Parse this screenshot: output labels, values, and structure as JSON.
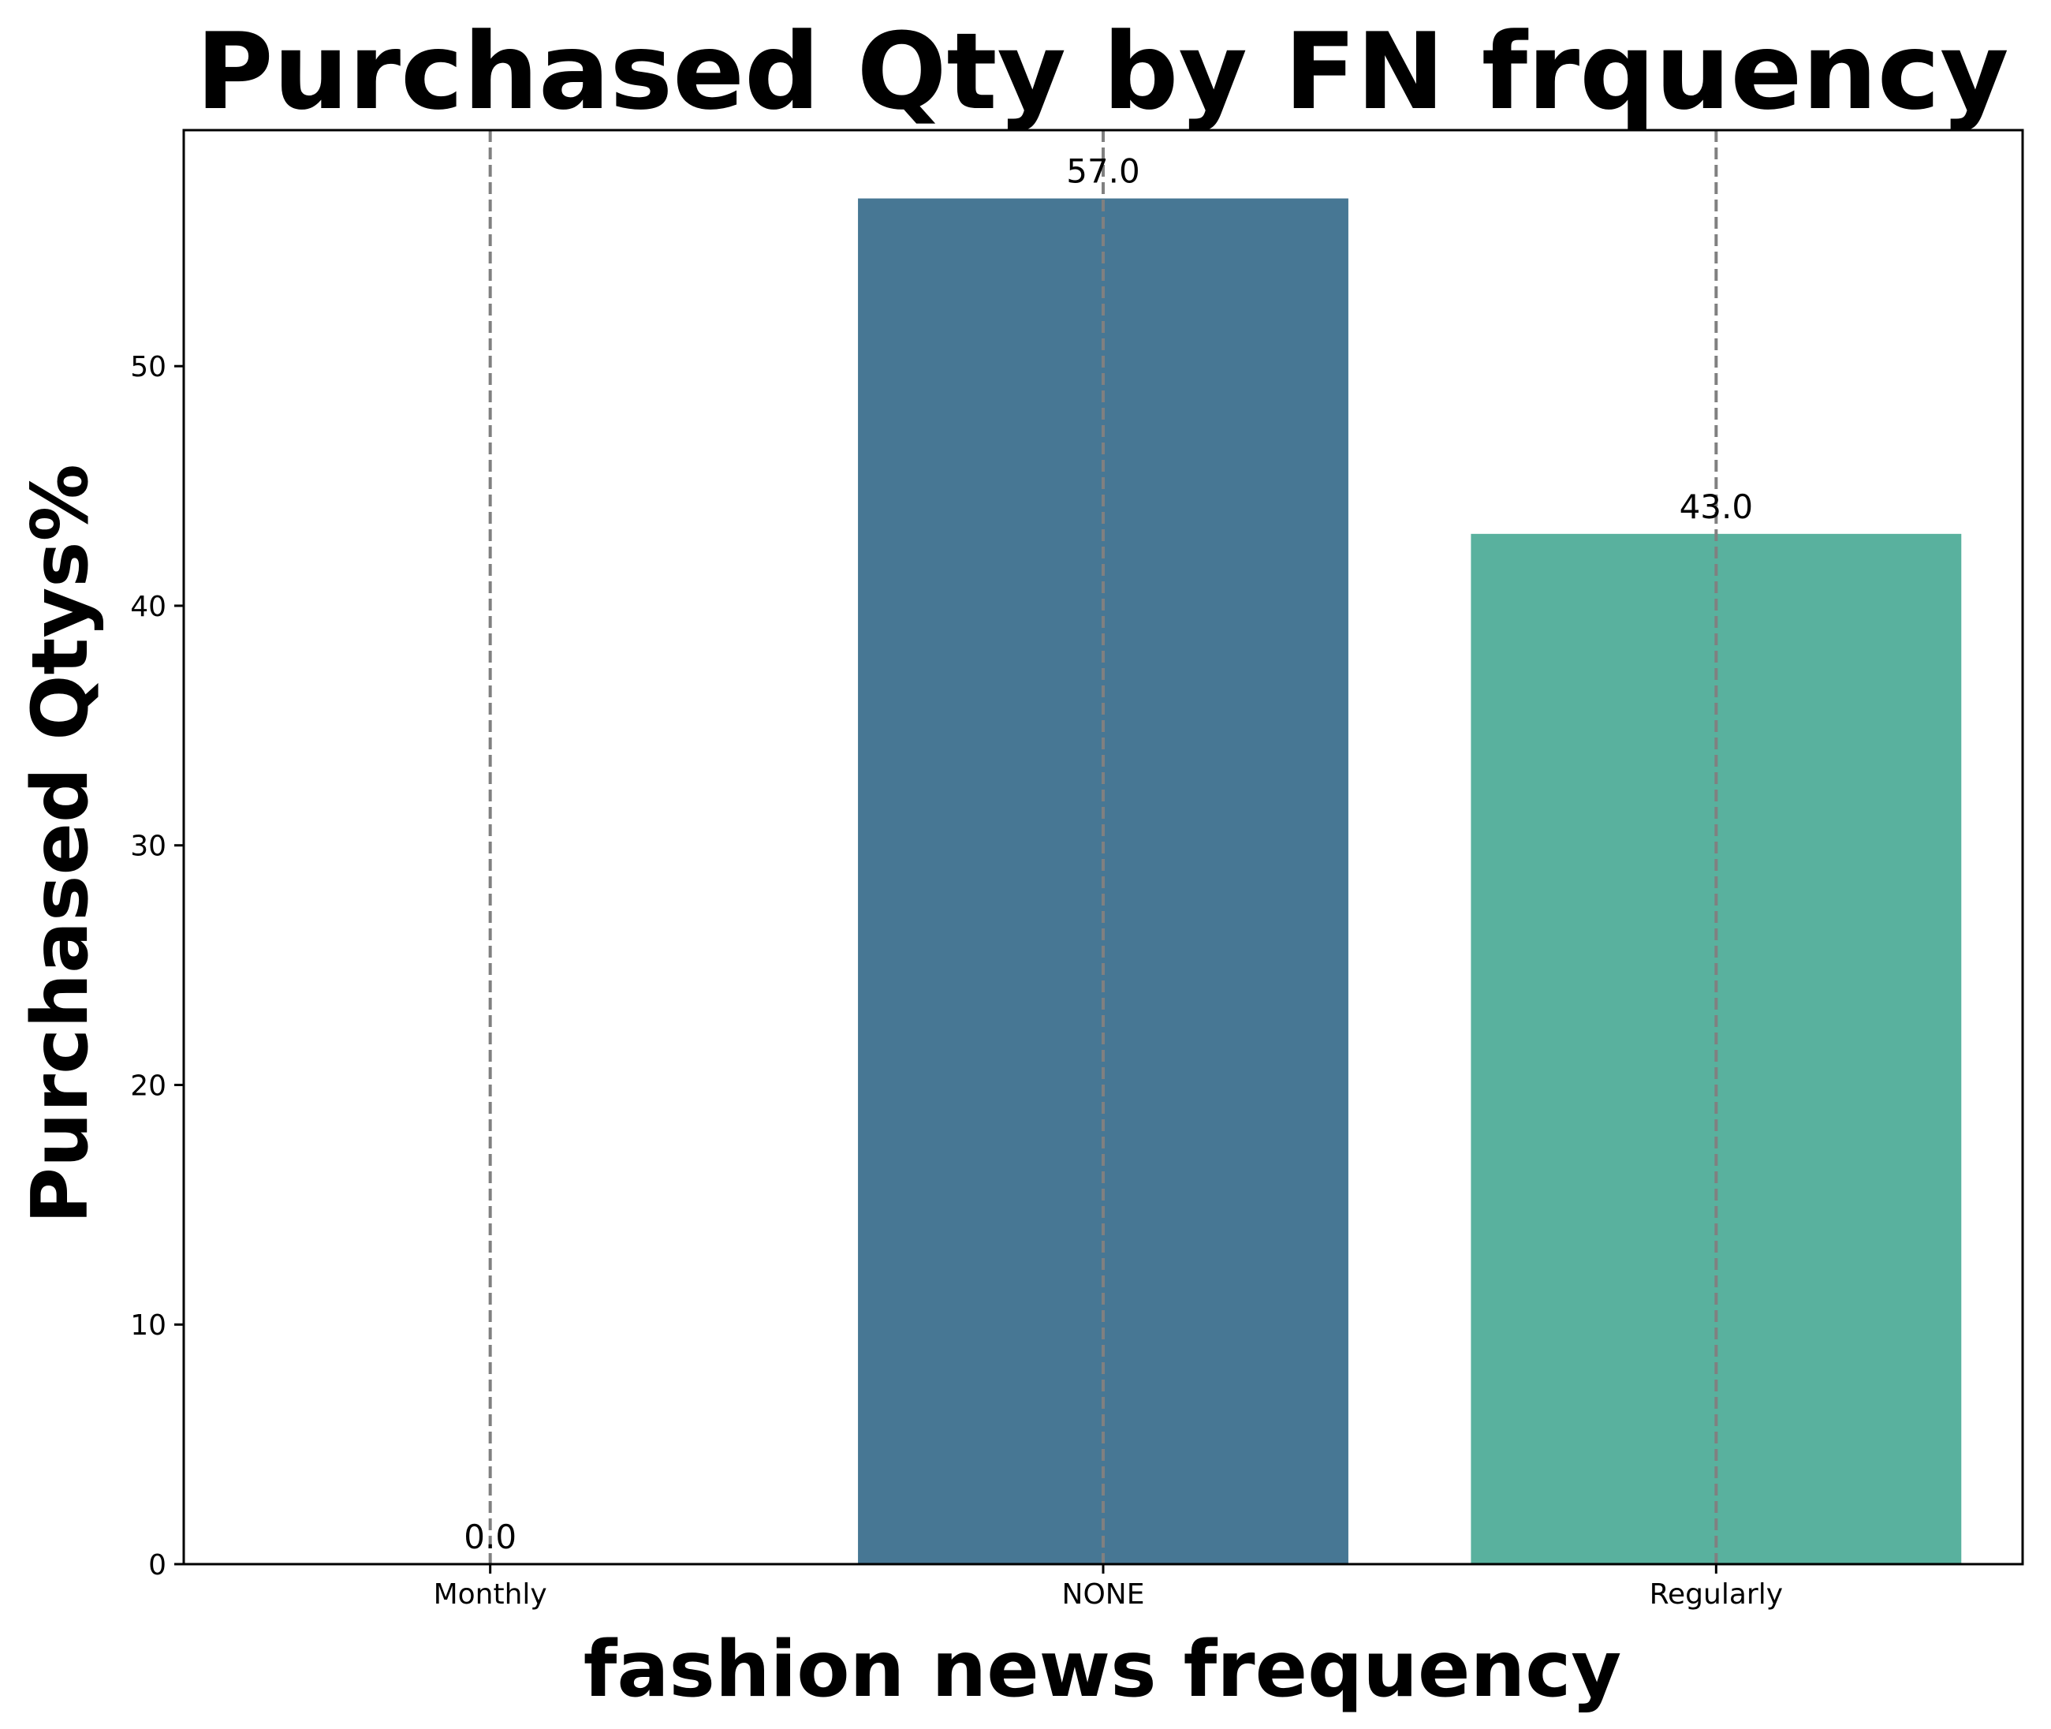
{
  "chart_data": {
    "type": "bar",
    "title": "Purchased Qty by FN frquency",
    "xlabel": "fashion news frequency",
    "ylabel": "Purchased Qtys%",
    "categories": [
      "Monthly",
      "NONE",
      "Regularly"
    ],
    "values": [
      0.0,
      57.0,
      43.0
    ],
    "data_labels": [
      "0.0",
      "57.0",
      "43.0"
    ],
    "ylim": [
      0,
      59.85
    ],
    "yticks": [
      0,
      10,
      20,
      30,
      40,
      50
    ],
    "grid": "vertical dashed lines at category positions",
    "colors": {
      "bars": [
        "#ffffff",
        "#477794",
        "#59b19e"
      ],
      "grid": "#808080",
      "axes": "#000000"
    }
  }
}
